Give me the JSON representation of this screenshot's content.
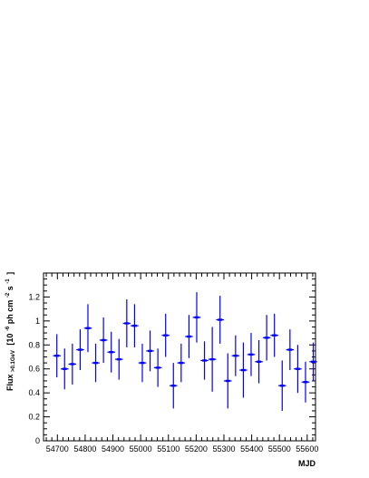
{
  "chart_data": {
    "type": "scatter",
    "title": "",
    "xlabel": "MJD",
    "ylabel": {
      "main": "Flux",
      "subscript": ">0.1GeV",
      "unit_prefix": "[10",
      "unit_exp": "-6",
      "unit_mid": " ph cm",
      "unit_exp2": "-2",
      "unit_mid2": " s",
      "unit_exp3": "-1",
      "unit_suffix": "]"
    },
    "xlim": [
      54650,
      55630
    ],
    "ylim": [
      0,
      1.4
    ],
    "xticks": [
      54700,
      54800,
      54900,
      55000,
      55100,
      55200,
      55300,
      55400,
      55500,
      55600
    ],
    "yticks": [
      0,
      0.2,
      0.4,
      0.6,
      0.8,
      1,
      1.2
    ],
    "x_halfwidth": 14,
    "series": [
      {
        "color": "#0000ff",
        "points": [
          {
            "x": 54698,
            "y": 0.71,
            "err": 0.18
          },
          {
            "x": 54726,
            "y": 0.6,
            "err": 0.17
          },
          {
            "x": 54754,
            "y": 0.64,
            "err": 0.17
          },
          {
            "x": 54782,
            "y": 0.76,
            "err": 0.17
          },
          {
            "x": 54810,
            "y": 0.94,
            "err": 0.2
          },
          {
            "x": 54838,
            "y": 0.65,
            "err": 0.16
          },
          {
            "x": 54866,
            "y": 0.84,
            "err": 0.19
          },
          {
            "x": 54894,
            "y": 0.74,
            "err": 0.17
          },
          {
            "x": 54922,
            "y": 0.68,
            "err": 0.17
          },
          {
            "x": 54950,
            "y": 0.98,
            "err": 0.2
          },
          {
            "x": 54978,
            "y": 0.96,
            "err": 0.18
          },
          {
            "x": 55006,
            "y": 0.65,
            "err": 0.16
          },
          {
            "x": 55034,
            "y": 0.75,
            "err": 0.17
          },
          {
            "x": 55062,
            "y": 0.61,
            "err": 0.16
          },
          {
            "x": 55090,
            "y": 0.88,
            "err": 0.18
          },
          {
            "x": 55118,
            "y": 0.46,
            "err": 0.19
          },
          {
            "x": 55146,
            "y": 0.65,
            "err": 0.16
          },
          {
            "x": 55174,
            "y": 0.87,
            "err": 0.18
          },
          {
            "x": 55202,
            "y": 1.03,
            "err": 0.21
          },
          {
            "x": 55230,
            "y": 0.67,
            "err": 0.16
          },
          {
            "x": 55258,
            "y": 0.68,
            "err": 0.27
          },
          {
            "x": 55286,
            "y": 1.01,
            "err": 0.2
          },
          {
            "x": 55314,
            "y": 0.5,
            "err": 0.23
          },
          {
            "x": 55342,
            "y": 0.71,
            "err": 0.17
          },
          {
            "x": 55370,
            "y": 0.59,
            "err": 0.23
          },
          {
            "x": 55398,
            "y": 0.72,
            "err": 0.18
          },
          {
            "x": 55426,
            "y": 0.66,
            "err": 0.18
          },
          {
            "x": 55454,
            "y": 0.86,
            "err": 0.19
          },
          {
            "x": 55482,
            "y": 0.88,
            "err": 0.18
          },
          {
            "x": 55510,
            "y": 0.46,
            "err": 0.21
          },
          {
            "x": 55538,
            "y": 0.76,
            "err": 0.17
          },
          {
            "x": 55566,
            "y": 0.6,
            "err": 0.2
          },
          {
            "x": 55594,
            "y": 0.49,
            "err": 0.17
          },
          {
            "x": 55622,
            "y": 0.66,
            "err": 0.16
          }
        ]
      }
    ],
    "grid": false,
    "legend": "none"
  }
}
